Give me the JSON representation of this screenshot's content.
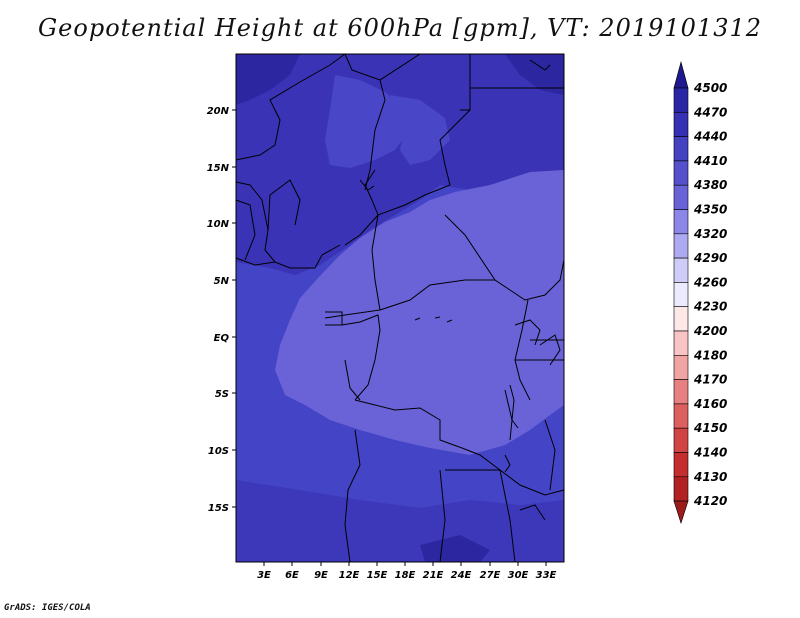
{
  "title": "Geopotential Height at 600hPa [gpm], VT: 2019101312",
  "credit": "GrADS: IGES/COLA",
  "map": {
    "lat_labels": [
      "20N",
      "15N",
      "10N",
      "5N",
      "EQ",
      "5S",
      "10S",
      "15S"
    ],
    "lon_labels": [
      "3E",
      "6E",
      "9E",
      "12E",
      "15E",
      "18E",
      "21E",
      "24E",
      "27E",
      "30E",
      "33E"
    ]
  },
  "colorbar": {
    "labels": [
      "4500",
      "4470",
      "4440",
      "4410",
      "4380",
      "4350",
      "4320",
      "4290",
      "4260",
      "4230",
      "4200",
      "4180",
      "4170",
      "4160",
      "4150",
      "4140",
      "4130",
      "4120"
    ],
    "colors": [
      "#20188f",
      "#2a25a4",
      "#3530b4",
      "#4343c2",
      "#5650cc",
      "#6a63d8",
      "#8c86e8",
      "#aeaaf1",
      "#cfcdf8",
      "#ecebfd",
      "#fde8e8",
      "#f8c4c4",
      "#f0a4a4",
      "#e78080",
      "#dd6060",
      "#d24444",
      "#c42e2e",
      "#b22222",
      "#9c1c1c"
    ]
  }
}
